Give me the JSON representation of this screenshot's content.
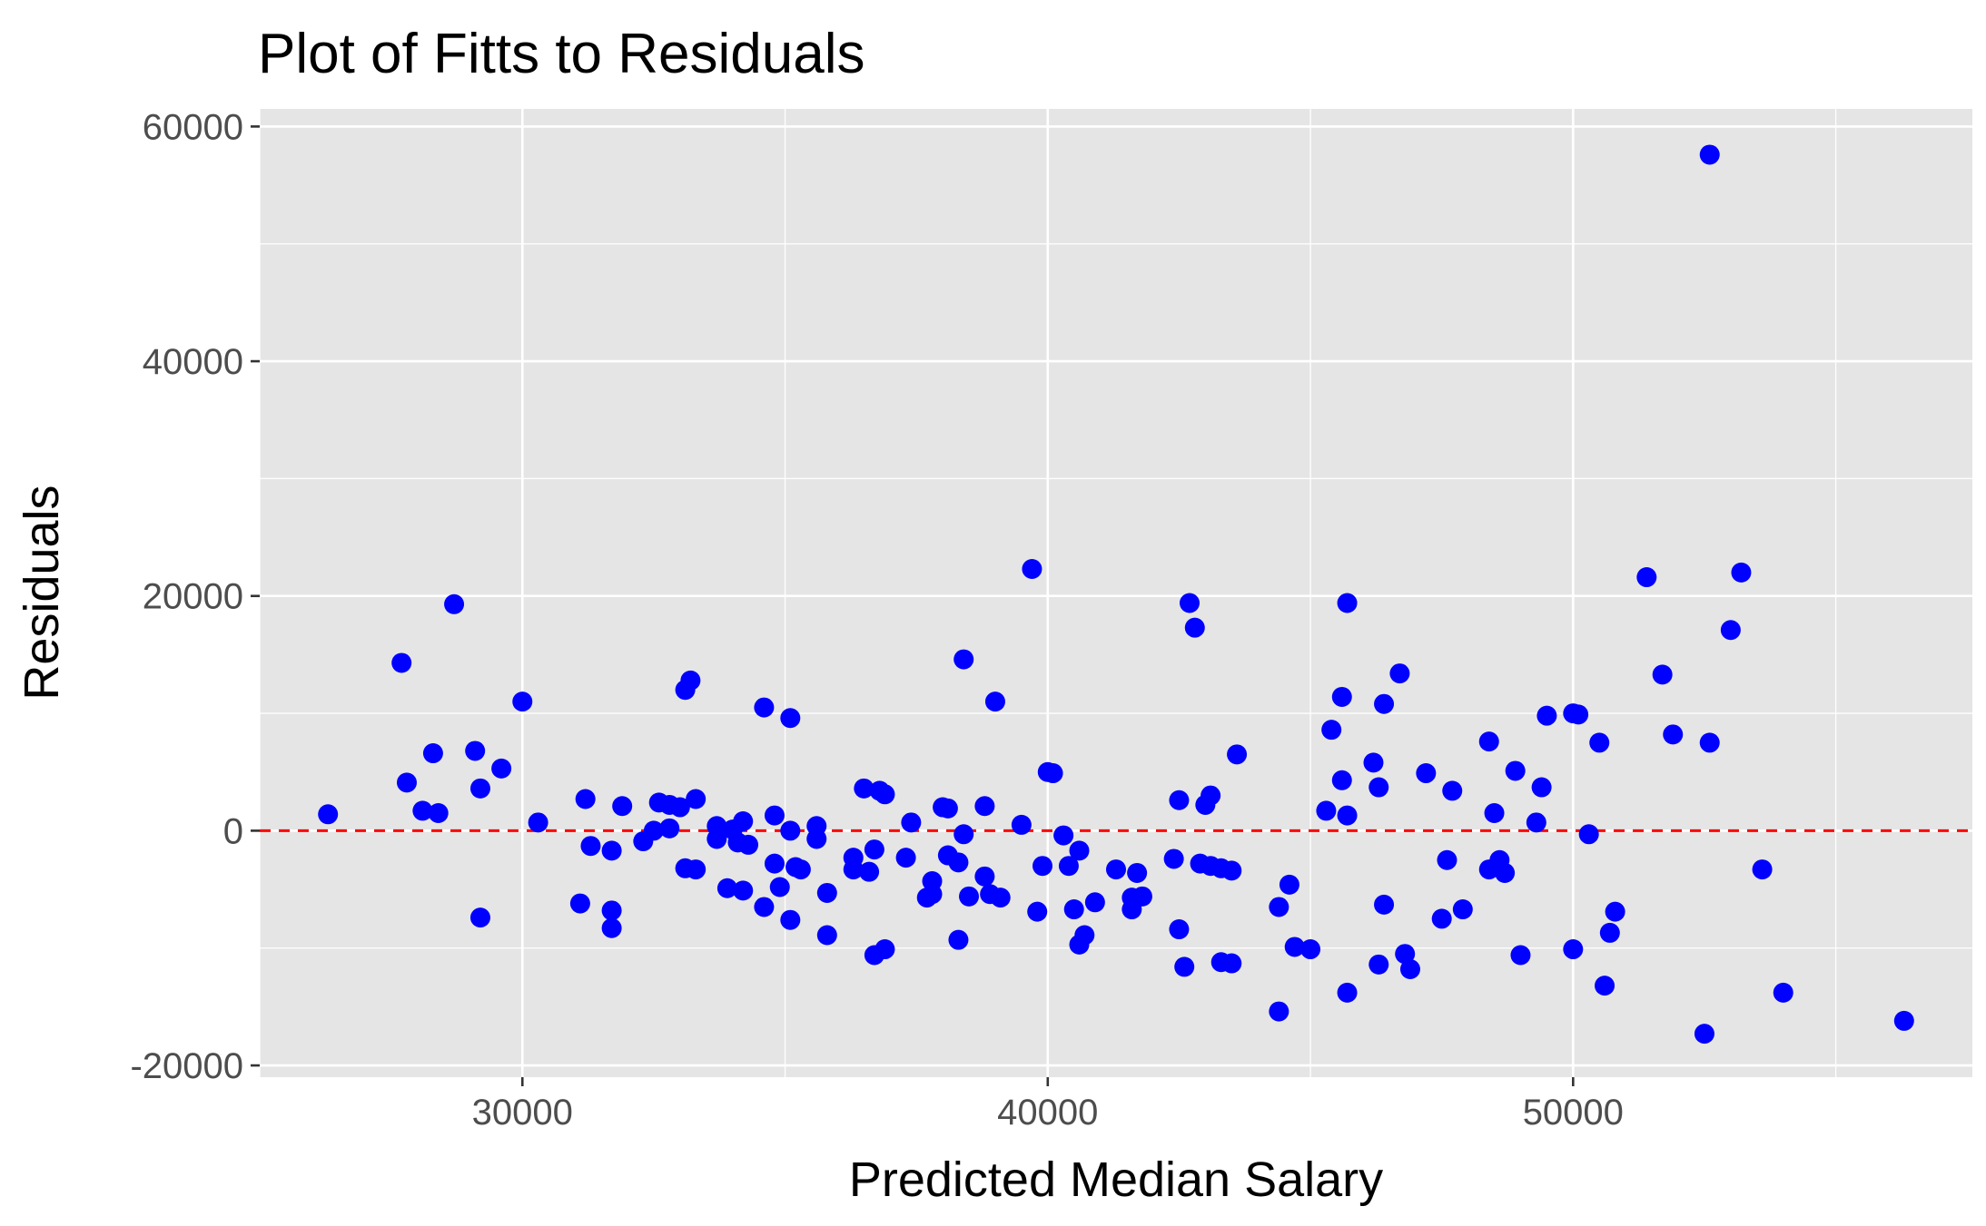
{
  "chart_data": {
    "type": "scatter",
    "title": "Plot of Fitts to Residuals",
    "xlabel": "Predicted Median Salary",
    "ylabel": "Residuals",
    "xlim": [
      25000,
      57600
    ],
    "ylim": [
      -21000,
      61500
    ],
    "xticks": [
      30000,
      40000,
      50000
    ],
    "yticks": [
      -20000,
      0,
      20000,
      40000,
      60000
    ],
    "x_minor": [
      25000,
      35000,
      45000,
      55000
    ],
    "y_minor": [
      -10000,
      10000,
      30000,
      50000
    ],
    "reference_line": {
      "y": 0,
      "color": "#ff0000",
      "style": "dashed"
    },
    "point_color": "#0000ff",
    "panel_color": "#e5e5e5",
    "grid_color": "#ffffff",
    "grid": true,
    "legend": "none",
    "points": [
      [
        26300,
        1400
      ],
      [
        27700,
        14300
      ],
      [
        27800,
        4100
      ],
      [
        28100,
        1700
      ],
      [
        28300,
        6600
      ],
      [
        28400,
        1500
      ],
      [
        28700,
        19300
      ],
      [
        29100,
        6800
      ],
      [
        29200,
        3600
      ],
      [
        29200,
        -7400
      ],
      [
        29600,
        5300
      ],
      [
        30000,
        11000
      ],
      [
        30300,
        700
      ],
      [
        31100,
        -6200
      ],
      [
        31200,
        2700
      ],
      [
        31300,
        -1300
      ],
      [
        31700,
        -1700
      ],
      [
        31700,
        -6800
      ],
      [
        31700,
        -8300
      ],
      [
        31900,
        2100
      ],
      [
        32300,
        -900
      ],
      [
        32500,
        0
      ],
      [
        32600,
        2400
      ],
      [
        32800,
        2200
      ],
      [
        32800,
        200
      ],
      [
        33000,
        2000
      ],
      [
        33100,
        12000
      ],
      [
        33100,
        -3200
      ],
      [
        33200,
        12800
      ],
      [
        33300,
        2700
      ],
      [
        33300,
        -3300
      ],
      [
        33700,
        -700
      ],
      [
        33700,
        400
      ],
      [
        33900,
        -4900
      ],
      [
        34000,
        100
      ],
      [
        34100,
        -1000
      ],
      [
        34200,
        -5100
      ],
      [
        34200,
        800
      ],
      [
        34300,
        -1200
      ],
      [
        34600,
        10500
      ],
      [
        34600,
        -6500
      ],
      [
        34800,
        1300
      ],
      [
        34800,
        -2800
      ],
      [
        34900,
        -4800
      ],
      [
        35100,
        9600
      ],
      [
        35100,
        0
      ],
      [
        35100,
        -7600
      ],
      [
        35200,
        -3100
      ],
      [
        35300,
        -3300
      ],
      [
        35600,
        400
      ],
      [
        35600,
        -700
      ],
      [
        35800,
        -5300
      ],
      [
        35800,
        -8900
      ],
      [
        36300,
        -2300
      ],
      [
        36300,
        -3300
      ],
      [
        36500,
        3600
      ],
      [
        36600,
        -3500
      ],
      [
        36700,
        -1600
      ],
      [
        36700,
        -10600
      ],
      [
        36800,
        3400
      ],
      [
        36900,
        3100
      ],
      [
        36900,
        -10100
      ],
      [
        37300,
        -2300
      ],
      [
        37400,
        700
      ],
      [
        37700,
        -5700
      ],
      [
        37800,
        -4300
      ],
      [
        37800,
        -5400
      ],
      [
        38000,
        2000
      ],
      [
        38100,
        1900
      ],
      [
        38100,
        -2100
      ],
      [
        38300,
        -2700
      ],
      [
        38300,
        -9300
      ],
      [
        38400,
        -300
      ],
      [
        38400,
        14600
      ],
      [
        38500,
        -5600
      ],
      [
        38800,
        2100
      ],
      [
        38800,
        -3900
      ],
      [
        38900,
        -5400
      ],
      [
        39000,
        11000
      ],
      [
        39100,
        -5700
      ],
      [
        39500,
        500
      ],
      [
        39700,
        22300
      ],
      [
        39800,
        -6900
      ],
      [
        39900,
        -3000
      ],
      [
        40000,
        5000
      ],
      [
        40100,
        4900
      ],
      [
        40300,
        -400
      ],
      [
        40400,
        -3000
      ],
      [
        40500,
        -6700
      ],
      [
        40600,
        -9700
      ],
      [
        40600,
        -1700
      ],
      [
        40700,
        -8900
      ],
      [
        40900,
        -6100
      ],
      [
        41300,
        -3300
      ],
      [
        41600,
        -5700
      ],
      [
        41600,
        -6700
      ],
      [
        41700,
        -3600
      ],
      [
        41800,
        -5600
      ],
      [
        42400,
        -2400
      ],
      [
        42500,
        2600
      ],
      [
        42500,
        -8400
      ],
      [
        42600,
        -11600
      ],
      [
        42700,
        19400
      ],
      [
        42800,
        17300
      ],
      [
        42900,
        -2800
      ],
      [
        43000,
        2200
      ],
      [
        43100,
        3000
      ],
      [
        43100,
        -3000
      ],
      [
        43300,
        -3200
      ],
      [
        43300,
        -11200
      ],
      [
        43500,
        -3400
      ],
      [
        43500,
        -11300
      ],
      [
        43600,
        6500
      ],
      [
        44400,
        -6500
      ],
      [
        44400,
        -15400
      ],
      [
        44600,
        -4600
      ],
      [
        44700,
        -9900
      ],
      [
        45000,
        -10100
      ],
      [
        45300,
        1700
      ],
      [
        45400,
        8600
      ],
      [
        45600,
        11400
      ],
      [
        45600,
        4300
      ],
      [
        45700,
        1300
      ],
      [
        45700,
        19400
      ],
      [
        45700,
        -13800
      ],
      [
        46200,
        5800
      ],
      [
        46300,
        3700
      ],
      [
        46300,
        -11400
      ],
      [
        46400,
        10800
      ],
      [
        46400,
        -6300
      ],
      [
        46700,
        13400
      ],
      [
        46800,
        -10500
      ],
      [
        46900,
        -11800
      ],
      [
        47200,
        4900
      ],
      [
        47500,
        -7500
      ],
      [
        47600,
        -2500
      ],
      [
        47700,
        3400
      ],
      [
        47900,
        -6700
      ],
      [
        48400,
        -3300
      ],
      [
        48400,
        7600
      ],
      [
        48500,
        1500
      ],
      [
        48600,
        -2500
      ],
      [
        48700,
        -3600
      ],
      [
        48900,
        5100
      ],
      [
        49000,
        -10600
      ],
      [
        49300,
        700
      ],
      [
        49400,
        3700
      ],
      [
        49500,
        9800
      ],
      [
        50000,
        10000
      ],
      [
        50000,
        -10100
      ],
      [
        50100,
        9900
      ],
      [
        50300,
        -300
      ],
      [
        50500,
        7500
      ],
      [
        50600,
        -13200
      ],
      [
        50700,
        -8700
      ],
      [
        50800,
        -6900
      ],
      [
        51400,
        21600
      ],
      [
        51700,
        13300
      ],
      [
        51900,
        8200
      ],
      [
        52500,
        -17300
      ],
      [
        52600,
        57600
      ],
      [
        52600,
        7500
      ],
      [
        53000,
        17100
      ],
      [
        53200,
        22000
      ],
      [
        53600,
        -3300
      ],
      [
        54000,
        -13800
      ],
      [
        56300,
        -16200
      ]
    ]
  }
}
